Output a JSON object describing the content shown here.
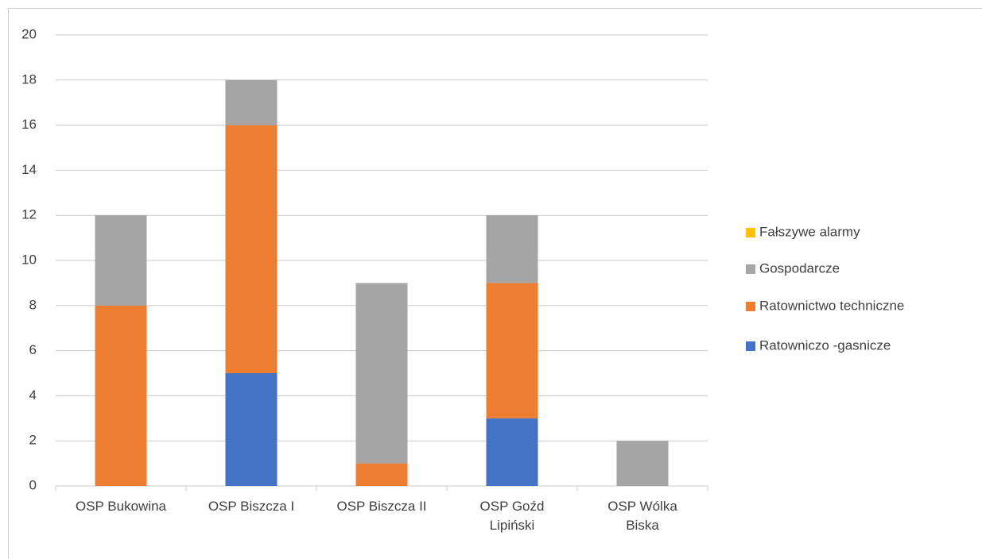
{
  "chart_data": {
    "type": "stacked_bar",
    "categories": [
      "OSP Bukowina",
      "OSP Biszcza I",
      "OSP Biszcza II",
      "OSP Goźd Lipiński",
      "OSP Wólka Biska"
    ],
    "series": [
      {
        "name": "Ratowniczo -gasnicze",
        "color": "#4472c4",
        "values": [
          0,
          5,
          0,
          3,
          0
        ]
      },
      {
        "name": "Ratownictwo techniczne",
        "color": "#ed7d31",
        "values": [
          8,
          11,
          1,
          6,
          0
        ]
      },
      {
        "name": "Gospodarcze",
        "color": "#a5a5a5",
        "values": [
          4,
          2,
          8,
          3,
          2
        ]
      },
      {
        "name": "Fałszywe alarmy",
        "color": "#ffc000",
        "values": [
          0,
          0,
          0,
          0,
          0
        ]
      }
    ],
    "ylim": [
      0,
      20
    ],
    "yticks": [
      0,
      2,
      4,
      6,
      8,
      10,
      12,
      14,
      16,
      18,
      20
    ],
    "grid": true,
    "legend": "right"
  }
}
